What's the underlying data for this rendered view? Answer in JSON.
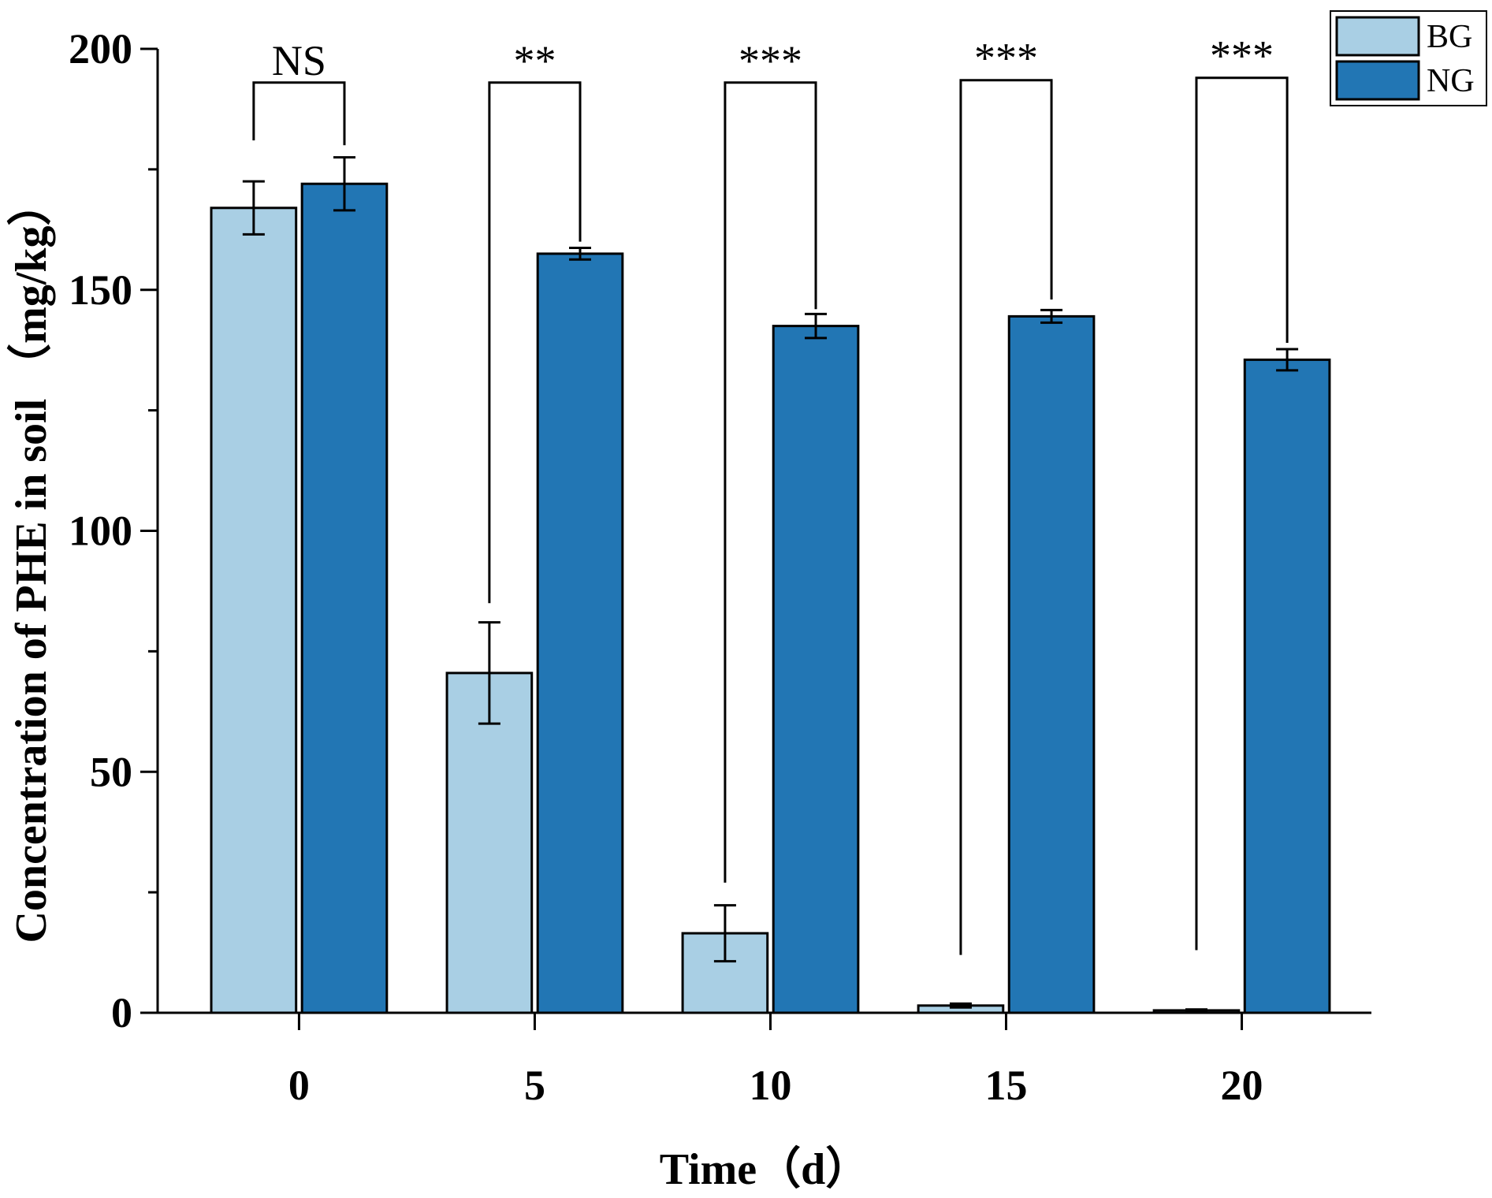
{
  "chart_data": {
    "type": "bar",
    "title": "",
    "xlabel": "Time（d）",
    "ylabel": "Concentration of PHE in soil （mg/kg）",
    "categories": [
      "0",
      "5",
      "10",
      "15",
      "20"
    ],
    "ylim": [
      0,
      200
    ],
    "yticks": [
      "0",
      "50",
      "100",
      "150",
      "200"
    ],
    "minor_yticks": [
      25,
      75,
      125,
      175
    ],
    "grid": false,
    "legend_position": "top-right",
    "series": [
      {
        "name": "BG",
        "color": "#a9cfe4",
        "values": [
          167,
          70.5,
          16.5,
          1.5,
          0.5
        ],
        "errors": [
          5.5,
          10.5,
          5.8,
          0.4,
          0.2
        ]
      },
      {
        "name": "NG",
        "color": "#2276b4",
        "values": [
          172,
          157.5,
          142.5,
          144.5,
          135.5
        ],
        "errors": [
          5.5,
          1.2,
          2.5,
          1.3,
          2.2
        ]
      }
    ],
    "significance": [
      {
        "category": "0",
        "label": "NS",
        "bracket_top": 193,
        "left_foot": 181,
        "right_foot": 180
      },
      {
        "category": "5",
        "label": "**",
        "bracket_top": 193,
        "left_foot": 85,
        "right_foot": 160
      },
      {
        "category": "10",
        "label": "***",
        "bracket_top": 193,
        "left_foot": 27,
        "right_foot": 146
      },
      {
        "category": "15",
        "label": "***",
        "bracket_top": 193.5,
        "left_foot": 12,
        "right_foot": 148
      },
      {
        "category": "20",
        "label": "***",
        "bracket_top": 194,
        "left_foot": 13,
        "right_foot": 139
      }
    ]
  }
}
